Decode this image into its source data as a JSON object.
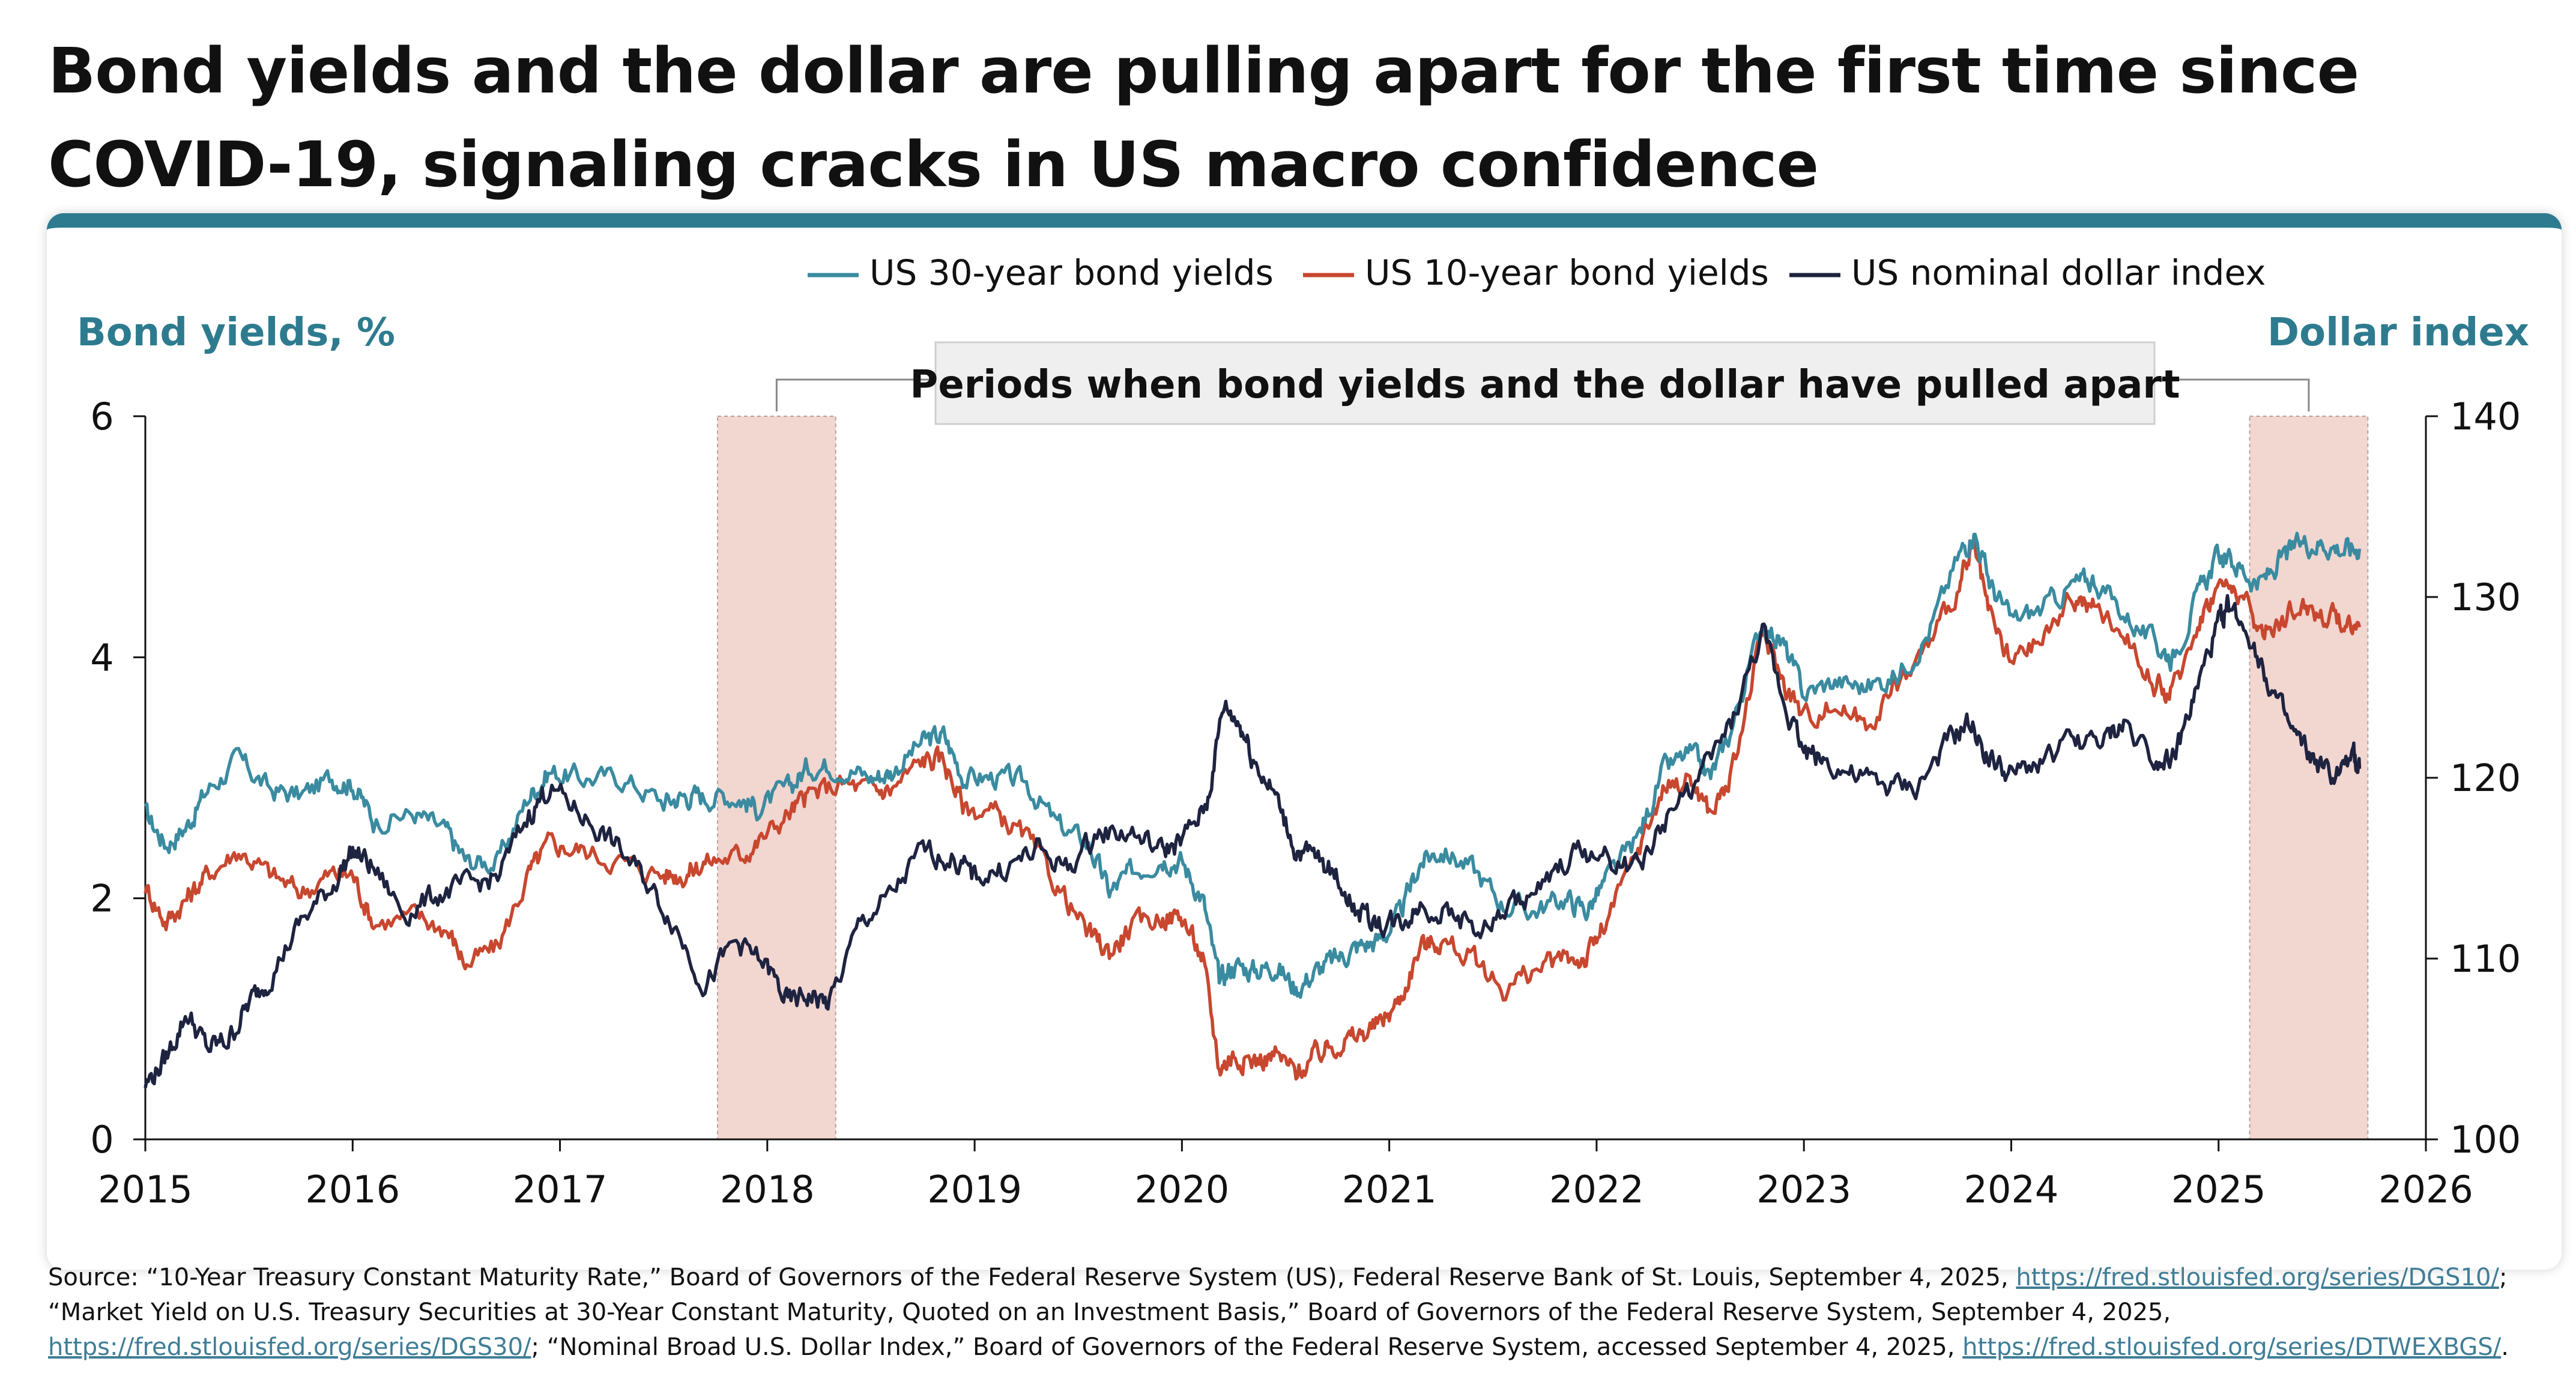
{
  "title": "Bond yields and the dollar are pulling apart for the first time since COVID-19, signaling cracks in US macro confidence",
  "colors": {
    "accent": "#2e7b8f",
    "y30": "#3a8ba0",
    "y10": "#c8472f",
    "dollar": "#1e2340",
    "shade": "#f2d6d0"
  },
  "chart_data": {
    "type": "line",
    "left_axis_label": "Bond yields, %",
    "right_axis_label": "Dollar index",
    "left_ylim": [
      0,
      6
    ],
    "right_ylim": [
      100,
      140
    ],
    "left_ticks": [
      "0",
      "2",
      "4",
      "6"
    ],
    "right_ticks": [
      "100",
      "110",
      "120",
      "130",
      "140"
    ],
    "x_ticks": [
      "2015",
      "2016",
      "2017",
      "2018",
      "2019",
      "2020",
      "2021",
      "2022",
      "2023",
      "2024",
      "2025",
      "2026"
    ],
    "xlim": [
      2015,
      2026
    ],
    "annotation": "Periods when bond yields and the dollar have pulled apart",
    "shaded_periods": [
      [
        2017.76,
        2018.33
      ],
      [
        2025.15,
        2025.72
      ]
    ],
    "series": [
      {
        "name": "US 30-year bond yields",
        "axis": "left",
        "color": "#3a8ba0",
        "points": [
          [
            2015.0,
            2.7
          ],
          [
            2015.1,
            2.45
          ],
          [
            2015.2,
            2.6
          ],
          [
            2015.3,
            2.9
          ],
          [
            2015.45,
            3.15
          ],
          [
            2015.6,
            2.9
          ],
          [
            2015.75,
            2.85
          ],
          [
            2015.9,
            3.0
          ],
          [
            2016.0,
            2.95
          ],
          [
            2016.1,
            2.65
          ],
          [
            2016.3,
            2.7
          ],
          [
            2016.45,
            2.55
          ],
          [
            2016.55,
            2.3
          ],
          [
            2016.7,
            2.3
          ],
          [
            2016.85,
            2.85
          ],
          [
            2016.95,
            3.05
          ],
          [
            2017.1,
            3.0
          ],
          [
            2017.3,
            3.0
          ],
          [
            2017.5,
            2.8
          ],
          [
            2017.6,
            2.85
          ],
          [
            2017.7,
            2.85
          ],
          [
            2017.85,
            2.85
          ],
          [
            2017.95,
            2.75
          ],
          [
            2018.1,
            2.9
          ],
          [
            2018.2,
            3.1
          ],
          [
            2018.35,
            3.1
          ],
          [
            2018.5,
            3.0
          ],
          [
            2018.6,
            3.05
          ],
          [
            2018.75,
            3.3
          ],
          [
            2018.85,
            3.35
          ],
          [
            2018.95,
            3.0
          ],
          [
            2019.1,
            3.0
          ],
          [
            2019.25,
            2.95
          ],
          [
            2019.4,
            2.6
          ],
          [
            2019.55,
            2.45
          ],
          [
            2019.65,
            2.05
          ],
          [
            2019.75,
            2.2
          ],
          [
            2019.9,
            2.35
          ],
          [
            2020.0,
            2.3
          ],
          [
            2020.1,
            2.0
          ],
          [
            2020.18,
            1.3
          ],
          [
            2020.25,
            1.45
          ],
          [
            2020.35,
            1.4
          ],
          [
            2020.45,
            1.45
          ],
          [
            2020.55,
            1.25
          ],
          [
            2020.65,
            1.4
          ],
          [
            2020.75,
            1.5
          ],
          [
            2020.85,
            1.6
          ],
          [
            2020.95,
            1.65
          ],
          [
            2021.05,
            1.85
          ],
          [
            2021.15,
            2.3
          ],
          [
            2021.25,
            2.4
          ],
          [
            2021.4,
            2.25
          ],
          [
            2021.55,
            1.95
          ],
          [
            2021.7,
            1.9
          ],
          [
            2021.85,
            2.0
          ],
          [
            2021.95,
            1.9
          ],
          [
            2022.05,
            2.15
          ],
          [
            2022.2,
            2.5
          ],
          [
            2022.32,
            3.05
          ],
          [
            2022.45,
            3.2
          ],
          [
            2022.55,
            3.0
          ],
          [
            2022.65,
            3.4
          ],
          [
            2022.8,
            4.3
          ],
          [
            2022.9,
            4.1
          ],
          [
            2023.0,
            3.7
          ],
          [
            2023.15,
            3.8
          ],
          [
            2023.3,
            3.75
          ],
          [
            2023.45,
            3.85
          ],
          [
            2023.6,
            4.2
          ],
          [
            2023.75,
            4.85
          ],
          [
            2023.82,
            5.05
          ],
          [
            2023.9,
            4.6
          ],
          [
            2024.0,
            4.3
          ],
          [
            2024.15,
            4.4
          ],
          [
            2024.3,
            4.6
          ],
          [
            2024.4,
            4.65
          ],
          [
            2024.55,
            4.35
          ],
          [
            2024.7,
            4.1
          ],
          [
            2024.78,
            4.0
          ],
          [
            2024.9,
            4.5
          ],
          [
            2025.0,
            4.85
          ],
          [
            2025.1,
            4.75
          ],
          [
            2025.2,
            4.6
          ],
          [
            2025.3,
            4.8
          ],
          [
            2025.4,
            4.95
          ],
          [
            2025.5,
            4.95
          ],
          [
            2025.6,
            4.9
          ],
          [
            2025.68,
            4.9
          ]
        ]
      },
      {
        "name": "US 10-year bond yields",
        "axis": "left",
        "color": "#c8472f",
        "points": [
          [
            2015.0,
            2.1
          ],
          [
            2015.1,
            1.8
          ],
          [
            2015.2,
            2.0
          ],
          [
            2015.3,
            2.2
          ],
          [
            2015.45,
            2.4
          ],
          [
            2015.6,
            2.2
          ],
          [
            2015.75,
            2.05
          ],
          [
            2015.9,
            2.2
          ],
          [
            2016.0,
            2.2
          ],
          [
            2016.1,
            1.8
          ],
          [
            2016.3,
            1.85
          ],
          [
            2016.45,
            1.75
          ],
          [
            2016.55,
            1.45
          ],
          [
            2016.7,
            1.6
          ],
          [
            2016.85,
            2.2
          ],
          [
            2016.95,
            2.45
          ],
          [
            2017.1,
            2.4
          ],
          [
            2017.3,
            2.3
          ],
          [
            2017.5,
            2.2
          ],
          [
            2017.6,
            2.2
          ],
          [
            2017.7,
            2.3
          ],
          [
            2017.85,
            2.35
          ],
          [
            2017.95,
            2.45
          ],
          [
            2018.1,
            2.7
          ],
          [
            2018.2,
            2.85
          ],
          [
            2018.35,
            2.95
          ],
          [
            2018.5,
            2.9
          ],
          [
            2018.6,
            2.9
          ],
          [
            2018.75,
            3.15
          ],
          [
            2018.85,
            3.15
          ],
          [
            2018.95,
            2.75
          ],
          [
            2019.1,
            2.7
          ],
          [
            2019.25,
            2.5
          ],
          [
            2019.4,
            2.1
          ],
          [
            2019.55,
            1.7
          ],
          [
            2019.65,
            1.55
          ],
          [
            2019.75,
            1.75
          ],
          [
            2019.9,
            1.85
          ],
          [
            2020.0,
            1.85
          ],
          [
            2020.1,
            1.5
          ],
          [
            2020.18,
            0.6
          ],
          [
            2020.25,
            0.7
          ],
          [
            2020.35,
            0.65
          ],
          [
            2020.45,
            0.7
          ],
          [
            2020.55,
            0.55
          ],
          [
            2020.65,
            0.7
          ],
          [
            2020.75,
            0.8
          ],
          [
            2020.85,
            0.85
          ],
          [
            2020.95,
            0.95
          ],
          [
            2021.05,
            1.15
          ],
          [
            2021.15,
            1.6
          ],
          [
            2021.25,
            1.65
          ],
          [
            2021.4,
            1.5
          ],
          [
            2021.55,
            1.25
          ],
          [
            2021.7,
            1.4
          ],
          [
            2021.85,
            1.5
          ],
          [
            2021.95,
            1.5
          ],
          [
            2022.05,
            1.8
          ],
          [
            2022.2,
            2.4
          ],
          [
            2022.32,
            2.9
          ],
          [
            2022.45,
            3.0
          ],
          [
            2022.55,
            2.7
          ],
          [
            2022.65,
            3.0
          ],
          [
            2022.8,
            4.2
          ],
          [
            2022.9,
            3.8
          ],
          [
            2023.0,
            3.5
          ],
          [
            2023.15,
            3.6
          ],
          [
            2023.3,
            3.45
          ],
          [
            2023.45,
            3.75
          ],
          [
            2023.6,
            4.1
          ],
          [
            2023.75,
            4.6
          ],
          [
            2023.82,
            4.9
          ],
          [
            2023.9,
            4.3
          ],
          [
            2024.0,
            3.95
          ],
          [
            2024.15,
            4.15
          ],
          [
            2024.3,
            4.5
          ],
          [
            2024.4,
            4.4
          ],
          [
            2024.55,
            4.2
          ],
          [
            2024.7,
            3.75
          ],
          [
            2024.78,
            3.7
          ],
          [
            2024.9,
            4.3
          ],
          [
            2025.0,
            4.6
          ],
          [
            2025.1,
            4.55
          ],
          [
            2025.2,
            4.2
          ],
          [
            2025.3,
            4.3
          ],
          [
            2025.4,
            4.45
          ],
          [
            2025.5,
            4.35
          ],
          [
            2025.6,
            4.3
          ],
          [
            2025.68,
            4.25
          ]
        ]
      },
      {
        "name": "US nominal dollar index",
        "axis": "right",
        "color": "#1e2340",
        "points": [
          [
            2015.0,
            103.0
          ],
          [
            2015.1,
            104.5
          ],
          [
            2015.2,
            107.0
          ],
          [
            2015.3,
            105.0
          ],
          [
            2015.4,
            105.5
          ],
          [
            2015.5,
            107.5
          ],
          [
            2015.6,
            109.0
          ],
          [
            2015.75,
            112.0
          ],
          [
            2015.9,
            114.0
          ],
          [
            2016.0,
            116.0
          ],
          [
            2016.1,
            115.0
          ],
          [
            2016.25,
            112.5
          ],
          [
            2016.4,
            113.5
          ],
          [
            2016.55,
            114.0
          ],
          [
            2016.7,
            114.5
          ],
          [
            2016.85,
            118.0
          ],
          [
            2016.95,
            119.5
          ],
          [
            2017.1,
            118.0
          ],
          [
            2017.25,
            116.5
          ],
          [
            2017.4,
            114.5
          ],
          [
            2017.55,
            112.0
          ],
          [
            2017.7,
            108.5
          ],
          [
            2017.85,
            111.0
          ],
          [
            2018.0,
            109.5
          ],
          [
            2018.1,
            107.5
          ],
          [
            2018.2,
            108.0
          ],
          [
            2018.3,
            107.5
          ],
          [
            2018.45,
            112.0
          ],
          [
            2018.6,
            113.5
          ],
          [
            2018.75,
            116.0
          ],
          [
            2018.9,
            115.5
          ],
          [
            2019.0,
            114.5
          ],
          [
            2019.15,
            115.0
          ],
          [
            2019.3,
            116.0
          ],
          [
            2019.45,
            115.0
          ],
          [
            2019.6,
            117.0
          ],
          [
            2019.75,
            117.0
          ],
          [
            2019.9,
            116.0
          ],
          [
            2020.0,
            116.5
          ],
          [
            2020.12,
            118.5
          ],
          [
            2020.2,
            124.0
          ],
          [
            2020.28,
            123.0
          ],
          [
            2020.35,
            121.0
          ],
          [
            2020.45,
            119.0
          ],
          [
            2020.55,
            116.0
          ],
          [
            2020.65,
            115.5
          ],
          [
            2020.75,
            114.5
          ],
          [
            2020.85,
            112.5
          ],
          [
            2020.95,
            112.0
          ],
          [
            2021.05,
            112.0
          ],
          [
            2021.15,
            113.0
          ],
          [
            2021.3,
            112.5
          ],
          [
            2021.45,
            111.5
          ],
          [
            2021.6,
            113.0
          ],
          [
            2021.75,
            114.0
          ],
          [
            2021.9,
            116.0
          ],
          [
            2022.05,
            115.5
          ],
          [
            2022.2,
            115.0
          ],
          [
            2022.35,
            118.0
          ],
          [
            2022.5,
            120.0
          ],
          [
            2022.65,
            123.0
          ],
          [
            2022.8,
            128.0
          ],
          [
            2022.9,
            124.5
          ],
          [
            2023.0,
            121.5
          ],
          [
            2023.1,
            121.0
          ],
          [
            2023.25,
            120.0
          ],
          [
            2023.4,
            119.5
          ],
          [
            2023.55,
            119.5
          ],
          [
            2023.7,
            122.0
          ],
          [
            2023.8,
            123.0
          ],
          [
            2023.9,
            121.0
          ],
          [
            2024.0,
            120.0
          ],
          [
            2024.15,
            121.0
          ],
          [
            2024.3,
            122.0
          ],
          [
            2024.45,
            122.0
          ],
          [
            2024.55,
            123.0
          ],
          [
            2024.7,
            121.0
          ],
          [
            2024.8,
            121.5
          ],
          [
            2024.9,
            125.0
          ],
          [
            2025.0,
            128.5
          ],
          [
            2025.05,
            129.5
          ],
          [
            2025.15,
            128.0
          ],
          [
            2025.25,
            125.0
          ],
          [
            2025.35,
            122.5
          ],
          [
            2025.45,
            121.0
          ],
          [
            2025.55,
            120.0
          ],
          [
            2025.65,
            121.0
          ],
          [
            2025.68,
            120.5
          ]
        ]
      }
    ]
  },
  "source": {
    "text1": "Source: “10-Year Treasury Constant Maturity Rate,” Board of Governors of the Federal Reserve System (US), Federal Reserve Bank of St. Louis, September 4, 2025, ",
    "link1": "https://fred.stlouisfed.org/series/DGS10/",
    "text2": ";",
    "text3": "“Market Yield on U.S. Treasury Securities at 30-Year Constant Maturity, Quoted on an Investment Basis,” Board of Governors of the Federal Reserve System, September 4, 2025,",
    "link2": "https://fred.stlouisfed.org/series/DGS30/",
    "text4": "; “Nominal Broad U.S. Dollar Index,” Board of Governors of the Federal Reserve System, accessed September 4, 2025, ",
    "link3": "https://fred.stlouisfed.org/series/DTWEXBGS/",
    "text5": "."
  }
}
